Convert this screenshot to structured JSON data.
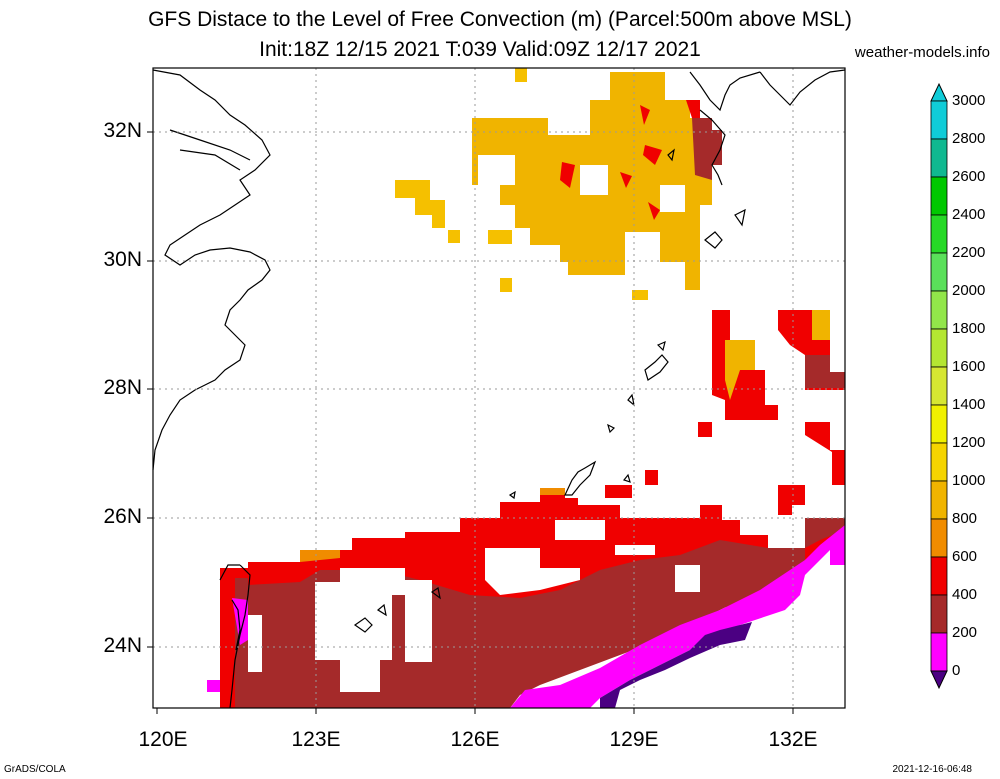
{
  "header": {
    "title_line1": "GFS Distace to the Level of Free Convection (m) (Parcel:500m above MSL)",
    "title_line2": "Init:18Z 12/15 2021 T:039 Valid:09Z 12/17 2021",
    "site": "weather-models.info"
  },
  "footer": {
    "left": "GrADS/COLA",
    "right": "2021-12-16-06:48"
  },
  "axes": {
    "lat_labels": [
      "32N",
      "30N",
      "28N",
      "26N",
      "24N"
    ],
    "lon_labels": [
      "120E",
      "123E",
      "126E",
      "129E",
      "132E"
    ]
  },
  "colorbar": {
    "labels": [
      "3000",
      "2800",
      "2600",
      "2400",
      "2200",
      "2000",
      "1800",
      "1600",
      "1400",
      "1200",
      "1000",
      "800",
      "600",
      "400",
      "200",
      "0"
    ],
    "colors": [
      "#10ccd8",
      "#10b890",
      "#00c800",
      "#26d926",
      "#5ae05a",
      "#92e64a",
      "#b4e632",
      "#d6e632",
      "#f0f000",
      "#f5d400",
      "#f0b400",
      "#f0a000",
      "#f08c00",
      "#f00000",
      "#a52a2a",
      "#ff00ff",
      "#4b0082"
    ]
  },
  "legend_colors": {
    "lfc_0_200": "#4b0082",
    "lfc_200_400": "#ff00ff",
    "lfc_400_600": "#a52a2a",
    "lfc_600_800": "#f00000",
    "lfc_800_1000": "#f08c00",
    "lfc_1000_1200": "#f0b400"
  }
}
